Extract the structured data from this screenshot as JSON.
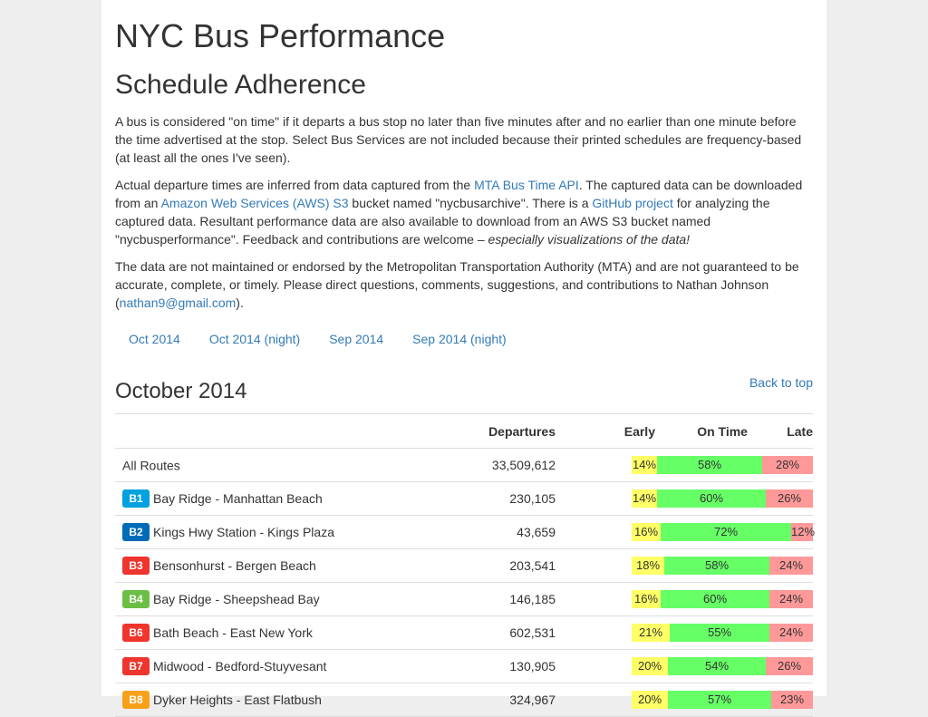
{
  "site_title": "NYC Bus Performance",
  "section_title": "Schedule Adherence",
  "para1": "A bus is considered \"on time\" if it departs a bus stop no later than five minutes after and no earlier than one minute before the time advertised at the stop. Select Bus Services are not included because their printed schedules are frequency-based (at least all the ones I've seen).",
  "para2": {
    "t1": "Actual departure times are inferred from data captured from the ",
    "link1": "MTA Bus Time API",
    "t2": ". The captured data can be downloaded from an ",
    "link2": "Amazon Web Services (AWS) S3",
    "t3": " bucket named \"nycbusarchive\". There is a ",
    "link3": "GitHub project",
    "t4": " for analyzing the captured data. Resultant performance data are also available to download from an AWS S3 bucket named \"nycbusperformance\". Feedback and contributions are welcome – ",
    "em": "especially visualizations of the data!"
  },
  "para3": {
    "t1": "The data are not maintained or endorsed by the Metropolitan Transportation Authority (MTA) and are not guaranteed to be accurate, complete, or timely. Please direct questions, comments, suggestions, and contributions to Nathan Johnson (",
    "email": "nathan9@gmail.com",
    "t2": ")."
  },
  "nav": [
    "Oct 2014",
    "Oct 2014 (night)",
    "Sep 2014",
    "Sep 2014 (night)"
  ],
  "month_title": "October 2014",
  "back_to_top": "Back to top",
  "table": {
    "headers": {
      "departures": "Departures",
      "early": "Early",
      "on_time": "On Time",
      "late": "Late"
    },
    "rows": [
      {
        "badge": "",
        "badge_color": "",
        "name": "All Routes",
        "departures": "33,509,612",
        "early": 14,
        "on_time": 58,
        "late": 28
      },
      {
        "badge": "B1",
        "badge_color": "#00a1de",
        "name": "Bay Ridge - Manhattan Beach",
        "departures": "230,105",
        "early": 14,
        "on_time": 60,
        "late": 26
      },
      {
        "badge": "B2",
        "badge_color": "#006cb7",
        "name": "Kings Hwy Station - Kings Plaza",
        "departures": "43,659",
        "early": 16,
        "on_time": 72,
        "late": 12
      },
      {
        "badge": "B3",
        "badge_color": "#ee352e",
        "name": "Bensonhurst - Bergen Beach",
        "departures": "203,541",
        "early": 18,
        "on_time": 58,
        "late": 24
      },
      {
        "badge": "B4",
        "badge_color": "#6cbe45",
        "name": "Bay Ridge - Sheepshead Bay",
        "departures": "146,185",
        "early": 16,
        "on_time": 60,
        "late": 24
      },
      {
        "badge": "B6",
        "badge_color": "#ee352e",
        "name": "Bath Beach - East New York",
        "departures": "602,531",
        "early": 21,
        "on_time": 55,
        "late": 24
      },
      {
        "badge": "B7",
        "badge_color": "#ee352e",
        "name": "Midwood - Bedford-Stuyvesant",
        "departures": "130,905",
        "early": 20,
        "on_time": 54,
        "late": 26
      },
      {
        "badge": "B8",
        "badge_color": "#f7a11a",
        "name": "Dyker Heights - East Flatbush",
        "departures": "324,967",
        "early": 20,
        "on_time": 57,
        "late": 23
      }
    ]
  }
}
